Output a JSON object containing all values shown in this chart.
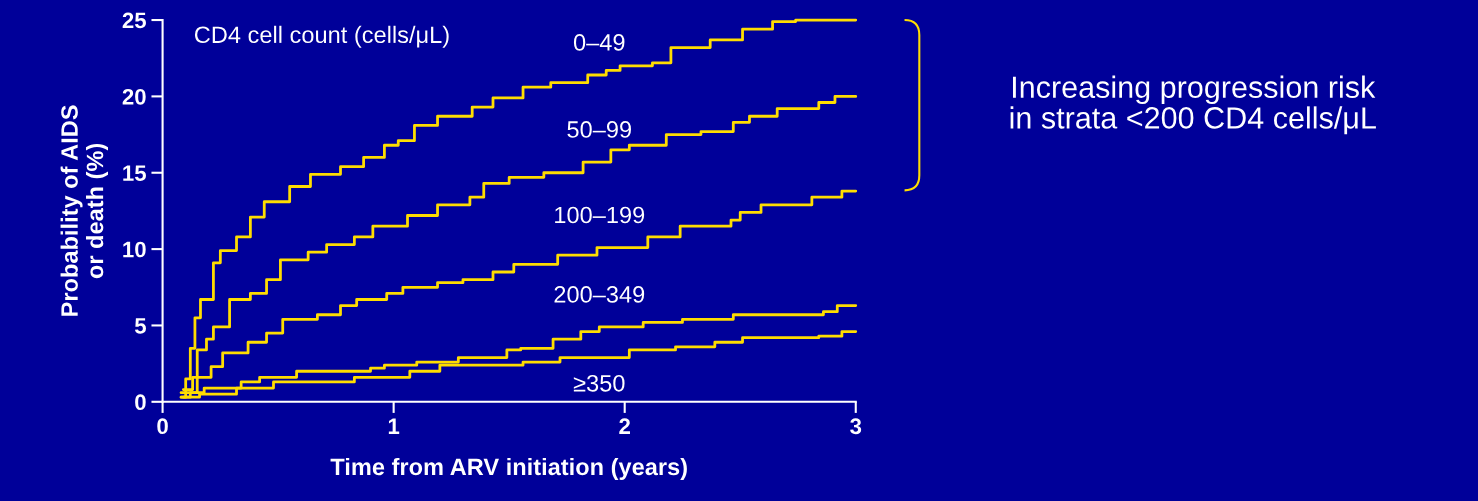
{
  "chart_data": {
    "type": "step",
    "xlabel": "Time from ARV initiation (years)",
    "ylabel": "Probability of AIDS\nor death (%)",
    "xlim": [
      0,
      3
    ],
    "ylim": [
      0,
      25
    ],
    "xticks": [
      0,
      1,
      2,
      3
    ],
    "yticks": [
      0,
      5,
      10,
      15,
      20,
      25
    ],
    "grid": false,
    "legend": false,
    "marker": "none",
    "line_style": "solid",
    "annotations": [
      "CD4 cell count (cells/μL)",
      "Increasing progression risk\nin strata <200 CD4 cells/μL"
    ],
    "series": [
      {
        "name": "0–49",
        "color": "#ffdd00",
        "x": [
          0.08,
          0.1,
          0.12,
          0.14,
          0.164,
          0.22,
          0.25,
          0.32,
          0.38,
          0.44,
          0.55,
          0.64,
          0.77,
          0.87,
          0.96,
          1.02,
          1.09,
          1.19,
          1.34,
          1.43,
          1.56,
          1.68,
          1.84,
          1.92,
          1.98,
          2.12,
          2.2,
          2.37,
          2.51,
          2.64,
          2.74,
          3.0
        ],
        "values": [
          0.3,
          1.5,
          3.5,
          5.5,
          6.7,
          9.1,
          9.9,
          10.8,
          12.1,
          13.1,
          14.1,
          14.9,
          15.4,
          16.0,
          16.8,
          17.1,
          18.1,
          18.7,
          19.3,
          19.9,
          20.6,
          20.9,
          21.4,
          21.7,
          22.0,
          22.2,
          23.2,
          23.7,
          24.4,
          24.9,
          25.0,
          25.0
        ]
      },
      {
        "name": "50–99",
        "color": "#ffdd00",
        "x": [
          0.08,
          0.12,
          0.15,
          0.19,
          0.22,
          0.29,
          0.38,
          0.45,
          0.51,
          0.63,
          0.71,
          0.83,
          0.91,
          1.06,
          1.19,
          1.33,
          1.39,
          1.5,
          1.65,
          1.82,
          1.94,
          2.02,
          2.18,
          2.33,
          2.47,
          2.54,
          2.66,
          2.84,
          2.91,
          3.0
        ],
        "values": [
          0.3,
          0.6,
          3.4,
          4.1,
          4.9,
          6.7,
          7.1,
          8.0,
          9.3,
          9.8,
          10.3,
          10.8,
          11.5,
          12.2,
          12.9,
          13.4,
          14.3,
          14.7,
          15.0,
          15.7,
          16.5,
          16.8,
          17.5,
          17.7,
          18.3,
          18.7,
          19.2,
          19.6,
          20.0,
          20.0
        ]
      },
      {
        "name": "100–199",
        "color": "#ffdd00",
        "x": [
          0.09,
          0.13,
          0.21,
          0.26,
          0.37,
          0.45,
          0.52,
          0.67,
          0.77,
          0.84,
          0.97,
          1.04,
          1.19,
          1.3,
          1.43,
          1.52,
          1.71,
          1.88,
          2.1,
          2.24,
          2.46,
          2.5,
          2.59,
          2.81,
          2.94,
          3.0
        ],
        "values": [
          0.8,
          1.6,
          2.3,
          3.2,
          3.9,
          4.5,
          5.4,
          5.7,
          6.3,
          6.7,
          7.1,
          7.5,
          7.8,
          8.0,
          8.5,
          9.0,
          9.6,
          10.1,
          10.8,
          11.5,
          11.9,
          12.4,
          12.9,
          13.4,
          13.8,
          13.8
        ]
      },
      {
        "name": "200–349",
        "color": "#ffdd00",
        "x": [
          0.08,
          0.18,
          0.34,
          0.42,
          0.58,
          0.9,
          0.96,
          1.1,
          1.28,
          1.49,
          1.55,
          1.69,
          1.81,
          1.89,
          2.08,
          2.25,
          2.47,
          2.86,
          2.92,
          3.0
        ],
        "values": [
          0.6,
          0.9,
          1.3,
          1.6,
          2.0,
          2.2,
          2.4,
          2.6,
          2.9,
          3.4,
          3.5,
          4.1,
          4.6,
          4.9,
          5.2,
          5.4,
          5.7,
          5.9,
          6.3,
          6.3
        ]
      },
      {
        "name": "≥350",
        "color": "#ffdd00",
        "x": [
          0.09,
          0.16,
          0.32,
          0.48,
          0.83,
          1.07,
          1.2,
          1.56,
          1.72,
          2.02,
          2.22,
          2.39,
          2.51,
          2.84,
          2.94,
          3.0
        ],
        "values": [
          0.3,
          0.5,
          0.9,
          1.3,
          1.6,
          2.0,
          2.4,
          2.6,
          2.9,
          3.4,
          3.6,
          3.9,
          4.2,
          4.3,
          4.6,
          4.6
        ]
      }
    ]
  }
}
